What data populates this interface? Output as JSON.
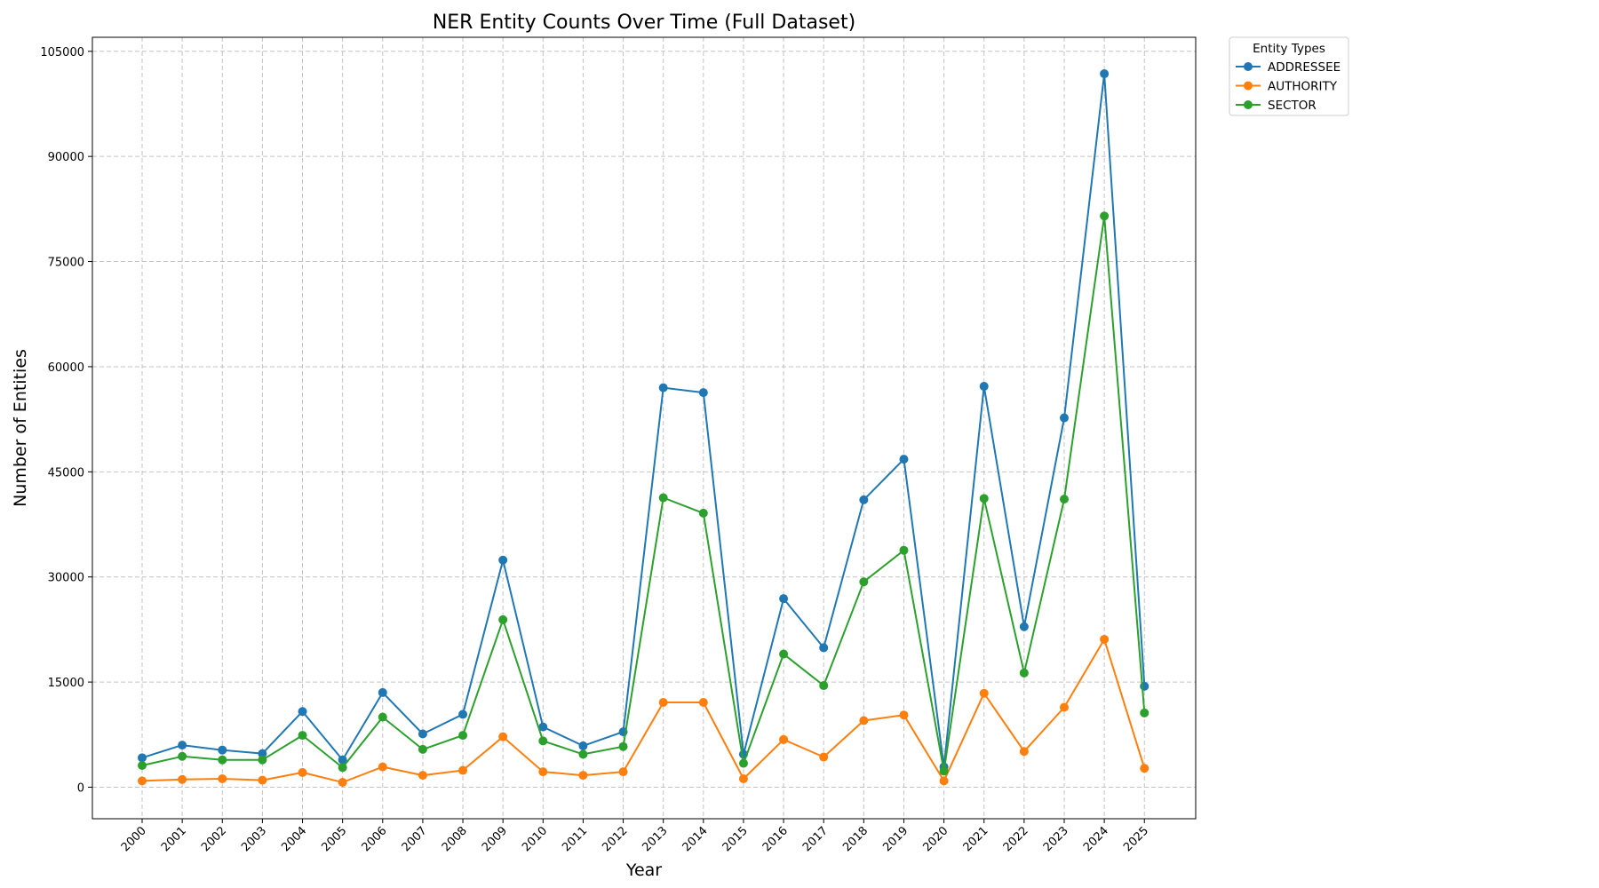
{
  "chart_data": {
    "type": "line",
    "title": "NER Entity Counts Over Time (Full Dataset)",
    "xlabel": "Year",
    "ylabel": "Number of Entities",
    "categories": [
      "2000",
      "2001",
      "2002",
      "2003",
      "2004",
      "2005",
      "2006",
      "2007",
      "2008",
      "2009",
      "2010",
      "2011",
      "2012",
      "2013",
      "2014",
      "2015",
      "2016",
      "2017",
      "2018",
      "2019",
      "2020",
      "2021",
      "2022",
      "2023",
      "2024",
      "2025"
    ],
    "yticks": [
      0,
      15000,
      30000,
      45000,
      60000,
      75000,
      90000,
      105000
    ],
    "ylim": [
      -4500,
      107000
    ],
    "grid": true,
    "legend": {
      "title": "Entity Types",
      "placement": "outside top-right"
    },
    "series": [
      {
        "name": "ADDRESSEE",
        "color": "#1f77b4",
        "values": [
          4200,
          6000,
          5300,
          4800,
          10800,
          3900,
          13500,
          7600,
          10400,
          32400,
          8600,
          5900,
          7900,
          57000,
          56300,
          4700,
          26900,
          19900,
          41000,
          46800,
          2900,
          57200,
          22900,
          52700,
          101800,
          14400
        ]
      },
      {
        "name": "AUTHORITY",
        "color": "#ff7f0e",
        "values": [
          900,
          1100,
          1200,
          1000,
          2100,
          700,
          2900,
          1700,
          2400,
          7200,
          2200,
          1700,
          2200,
          12100,
          12100,
          1200,
          6800,
          4300,
          9500,
          10300,
          900,
          13400,
          5100,
          11400,
          21100,
          2700
        ]
      },
      {
        "name": "SECTOR",
        "color": "#2ca02c",
        "values": [
          3100,
          4400,
          3900,
          3900,
          7400,
          2800,
          10000,
          5400,
          7400,
          23900,
          6600,
          4700,
          5800,
          41300,
          39100,
          3400,
          19000,
          14500,
          29300,
          33800,
          2300,
          41200,
          16300,
          41100,
          81500,
          10600
        ]
      }
    ]
  }
}
